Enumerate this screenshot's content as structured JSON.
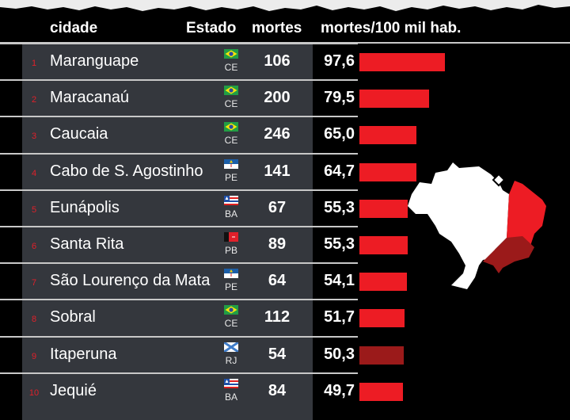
{
  "headers": {
    "city": "cidade",
    "state": "Estado",
    "deaths": "mortes",
    "rate": "mortes/100 mil hab."
  },
  "colors": {
    "bar": "#ed1c24",
    "bar_highlight": "#9b1a1a",
    "panel": "#34373d",
    "rank": "#e0202a"
  },
  "chart_data": {
    "type": "bar",
    "title": "mortes/100 mil hab.",
    "categories": [
      "Maranguape",
      "Maracanaú",
      "Caucaia",
      "Cabo de S. Agostinho",
      "Eunápolis",
      "Santa Rita",
      "São Lourenço da Mata",
      "Sobral",
      "Itaperuna",
      "Jequié"
    ],
    "values": [
      97.6,
      79.5,
      65.0,
      64.7,
      55.3,
      55.3,
      54.1,
      51.7,
      50.3,
      49.7
    ],
    "xlim": [
      0,
      100
    ],
    "rows": [
      {
        "rank": "1",
        "city": "Maranguape",
        "state": "CE",
        "flag": "br",
        "deaths": "106",
        "rate": "97,6",
        "value": 97.6,
        "highlight": false
      },
      {
        "rank": "2",
        "city": "Maracanaú",
        "state": "CE",
        "flag": "br",
        "deaths": "200",
        "rate": "79,5",
        "value": 79.5,
        "highlight": false
      },
      {
        "rank": "3",
        "city": "Caucaia",
        "state": "CE",
        "flag": "br",
        "deaths": "246",
        "rate": "65,0",
        "value": 65.0,
        "highlight": false
      },
      {
        "rank": "4",
        "city": "Cabo de S. Agostinho",
        "state": "PE",
        "flag": "pe",
        "deaths": "141",
        "rate": "64,7",
        "value": 64.7,
        "highlight": false
      },
      {
        "rank": "5",
        "city": "Eunápolis",
        "state": "BA",
        "flag": "ba",
        "deaths": "67",
        "rate": "55,3",
        "value": 55.3,
        "highlight": false
      },
      {
        "rank": "6",
        "city": "Santa Rita",
        "state": "PB",
        "flag": "pb",
        "deaths": "89",
        "rate": "55,3",
        "value": 55.3,
        "highlight": false
      },
      {
        "rank": "7",
        "city": "São Lourenço da Mata",
        "state": "PE",
        "flag": "pe",
        "deaths": "64",
        "rate": "54,1",
        "value": 54.1,
        "highlight": false
      },
      {
        "rank": "8",
        "city": "Sobral",
        "state": "CE",
        "flag": "br",
        "deaths": "112",
        "rate": "51,7",
        "value": 51.7,
        "highlight": false
      },
      {
        "rank": "9",
        "city": "Itaperuna",
        "state": "RJ",
        "flag": "rj",
        "deaths": "54",
        "rate": "50,3",
        "value": 50.3,
        "highlight": true
      },
      {
        "rank": "10",
        "city": "Jequié",
        "state": "BA",
        "flag": "ba",
        "deaths": "84",
        "rate": "49,7",
        "value": 49.7,
        "highlight": false
      }
    ]
  }
}
